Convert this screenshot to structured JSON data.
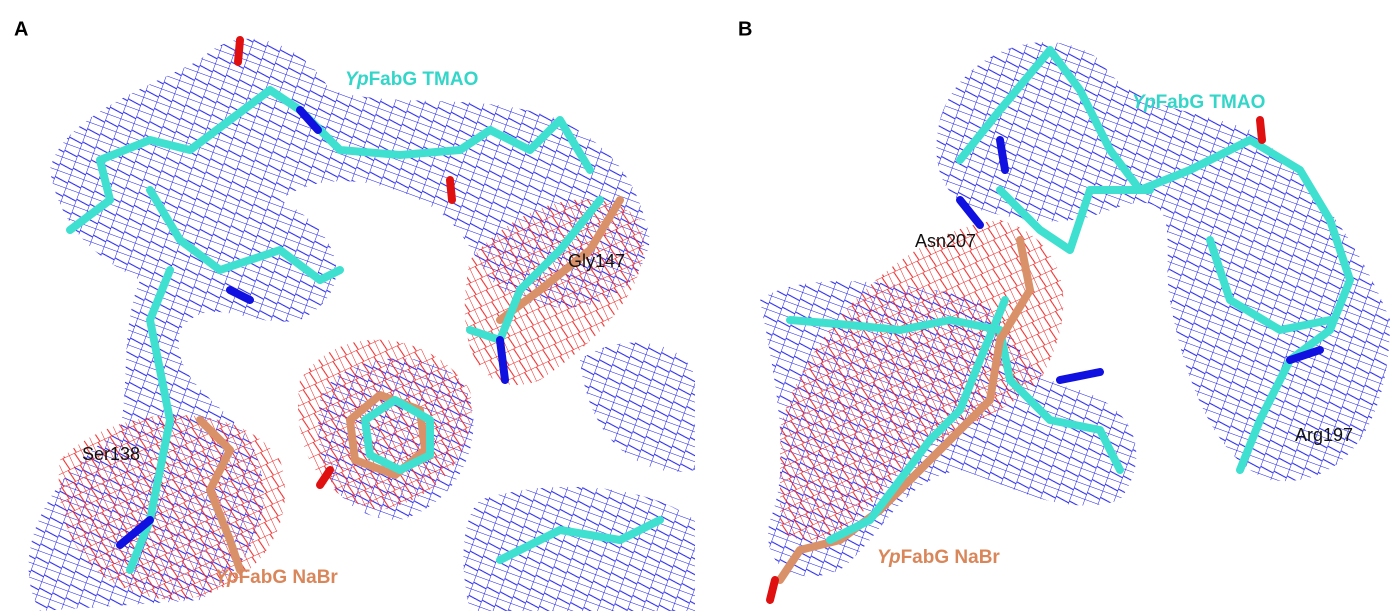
{
  "panels": [
    {
      "label": "A",
      "legend_top": {
        "italic": "Yp",
        "text": "FabG TMAO"
      },
      "legend_bottom": {
        "italic": "Yp",
        "text": "FabG NaBr"
      },
      "residues": [
        "Gly147",
        "Ser138"
      ]
    },
    {
      "label": "B",
      "legend_top": {
        "italic": "Yp",
        "text": "FabG TMAO"
      },
      "legend_bottom": {
        "italic": "Yp",
        "text": "FabG NaBr"
      },
      "residues": [
        "Asn207",
        "Arg197"
      ]
    }
  ]
}
